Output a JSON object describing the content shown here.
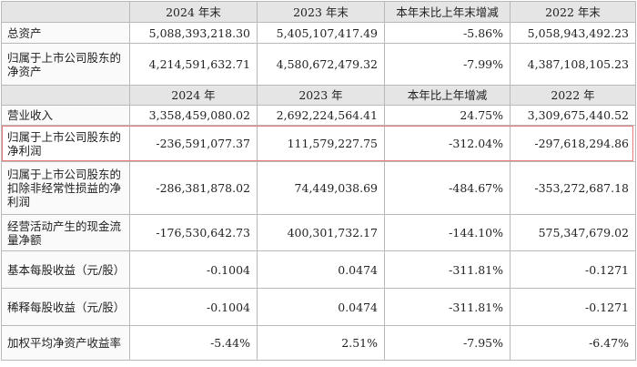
{
  "section1": {
    "headers": [
      "",
      "2024 年末",
      "2023 年末",
      "本年末比上年末增减",
      "2022 年末"
    ],
    "rows": [
      {
        "label": "总资产",
        "v2024": "5,088,393,218.30",
        "v2023": "5,405,107,417.49",
        "change": "-5.86%",
        "v2022": "5,058,943,492.23"
      },
      {
        "label": "归属于上市公司股东的净资产",
        "v2024": "4,214,591,632.71",
        "v2023": "4,580,672,479.32",
        "change": "-7.99%",
        "v2022": "4,387,108,105.23"
      }
    ]
  },
  "section2": {
    "headers": [
      "",
      "2024 年",
      "2023 年",
      "本年比上年增减",
      "2022 年"
    ],
    "rows": [
      {
        "label": "营业收入",
        "v2024": "3,358,459,080.02",
        "v2023": "2,692,224,564.41",
        "change": "24.75%",
        "v2022": "3,309,675,440.52"
      },
      {
        "label": "归属于上市公司股东的净利润",
        "v2024": "-236,591,077.37",
        "v2023": "111,579,227.75",
        "change": "-312.04%",
        "v2022": "-297,618,294.86"
      },
      {
        "label": "归属于上市公司股东的扣除非经常性损益的净利润",
        "v2024": "-286,381,878.02",
        "v2023": "74,449,038.69",
        "change": "-484.67%",
        "v2022": "-353,272,687.18"
      },
      {
        "label": "经营活动产生的现金流量净额",
        "v2024": "-176,530,642.73",
        "v2023": "400,301,732.17",
        "change": "-144.10%",
        "v2022": "575,347,679.02"
      },
      {
        "label": "基本每股收益（元/股）",
        "v2024": "-0.1004",
        "v2023": "0.0474",
        "change": "-311.81%",
        "v2022": "-0.1271"
      },
      {
        "label": "稀释每股收益（元/股）",
        "v2024": "-0.1004",
        "v2023": "0.0474",
        "change": "-311.81%",
        "v2022": "-0.1271"
      },
      {
        "label": "加权平均净资产收益率",
        "v2024": "-5.44%",
        "v2023": "2.51%",
        "change": "-7.95%",
        "v2022": "-6.47%"
      }
    ]
  },
  "highlight_color": "#e87a7a"
}
